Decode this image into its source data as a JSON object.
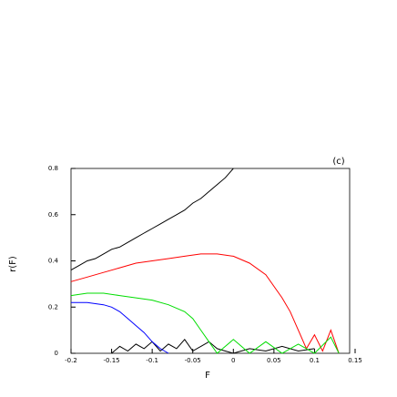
{
  "chart_data": {
    "type": "line",
    "title": "(c)",
    "xlabel": "F",
    "ylabel": "r(F)",
    "xlim": [
      -0.2,
      0.15
    ],
    "ylim": [
      0,
      0.8
    ],
    "xticks": [
      -0.2,
      -0.15,
      -0.1,
      -0.05,
      0,
      0.05,
      0.1,
      0.15
    ],
    "yticks": [
      0,
      0.2,
      0.4,
      0.6,
      0.8
    ],
    "series": [
      {
        "name": "black",
        "color": "#000000",
        "x": [
          -0.2,
          -0.19,
          -0.18,
          -0.17,
          -0.16,
          -0.15,
          -0.14,
          -0.13,
          -0.12,
          -0.11,
          -0.1,
          -0.09,
          -0.08,
          -0.07,
          -0.06,
          -0.05,
          -0.04,
          -0.03,
          -0.02,
          -0.01,
          0.0,
          null,
          -0.15,
          -0.14,
          -0.13,
          -0.12,
          -0.11,
          -0.1,
          -0.09,
          -0.08,
          -0.07,
          -0.06,
          -0.05,
          -0.04,
          -0.03,
          -0.02,
          -0.01,
          0.0,
          0.02,
          0.04,
          0.06,
          0.08,
          0.1
        ],
        "values": [
          0.36,
          0.38,
          0.4,
          0.41,
          0.43,
          0.45,
          0.46,
          0.48,
          0.5,
          0.52,
          0.54,
          0.56,
          0.58,
          0.6,
          0.62,
          0.65,
          0.67,
          0.7,
          0.73,
          0.76,
          0.8,
          null,
          0.0,
          0.03,
          0.01,
          0.04,
          0.02,
          0.05,
          0.01,
          0.04,
          0.02,
          0.06,
          0.01,
          0.03,
          0.05,
          0.02,
          0.01,
          0.0,
          0.02,
          0.01,
          0.03,
          0.01,
          0.02
        ]
      },
      {
        "name": "red",
        "color": "#ff0000",
        "x": [
          -0.2,
          -0.18,
          -0.16,
          -0.14,
          -0.12,
          -0.1,
          -0.08,
          -0.06,
          -0.04,
          -0.02,
          0.0,
          0.02,
          0.04,
          0.06,
          0.07,
          0.08,
          0.09,
          0.1,
          0.11,
          0.12,
          0.13
        ],
        "values": [
          0.31,
          0.33,
          0.35,
          0.37,
          0.39,
          0.4,
          0.41,
          0.42,
          0.43,
          0.43,
          0.42,
          0.39,
          0.34,
          0.24,
          0.18,
          0.1,
          0.02,
          0.08,
          0.01,
          0.1,
          0.0
        ]
      },
      {
        "name": "green",
        "color": "#00dd00",
        "x": [
          -0.2,
          -0.18,
          -0.16,
          -0.14,
          -0.12,
          -0.1,
          -0.08,
          -0.06,
          -0.05,
          -0.04,
          -0.03,
          -0.02,
          0.0,
          0.02,
          0.04,
          0.06,
          0.08,
          0.1,
          0.12,
          0.13
        ],
        "values": [
          0.25,
          0.26,
          0.26,
          0.25,
          0.24,
          0.23,
          0.21,
          0.18,
          0.15,
          0.1,
          0.05,
          0.0,
          0.06,
          0.0,
          0.05,
          0.0,
          0.04,
          0.0,
          0.07,
          0.0
        ]
      },
      {
        "name": "blue",
        "color": "#0000ff",
        "x": [
          -0.2,
          -0.18,
          -0.16,
          -0.15,
          -0.14,
          -0.13,
          -0.12,
          -0.11,
          -0.1,
          -0.09,
          -0.08
        ],
        "values": [
          0.22,
          0.22,
          0.21,
          0.2,
          0.18,
          0.15,
          0.12,
          0.09,
          0.05,
          0.02,
          0.0
        ]
      }
    ]
  }
}
